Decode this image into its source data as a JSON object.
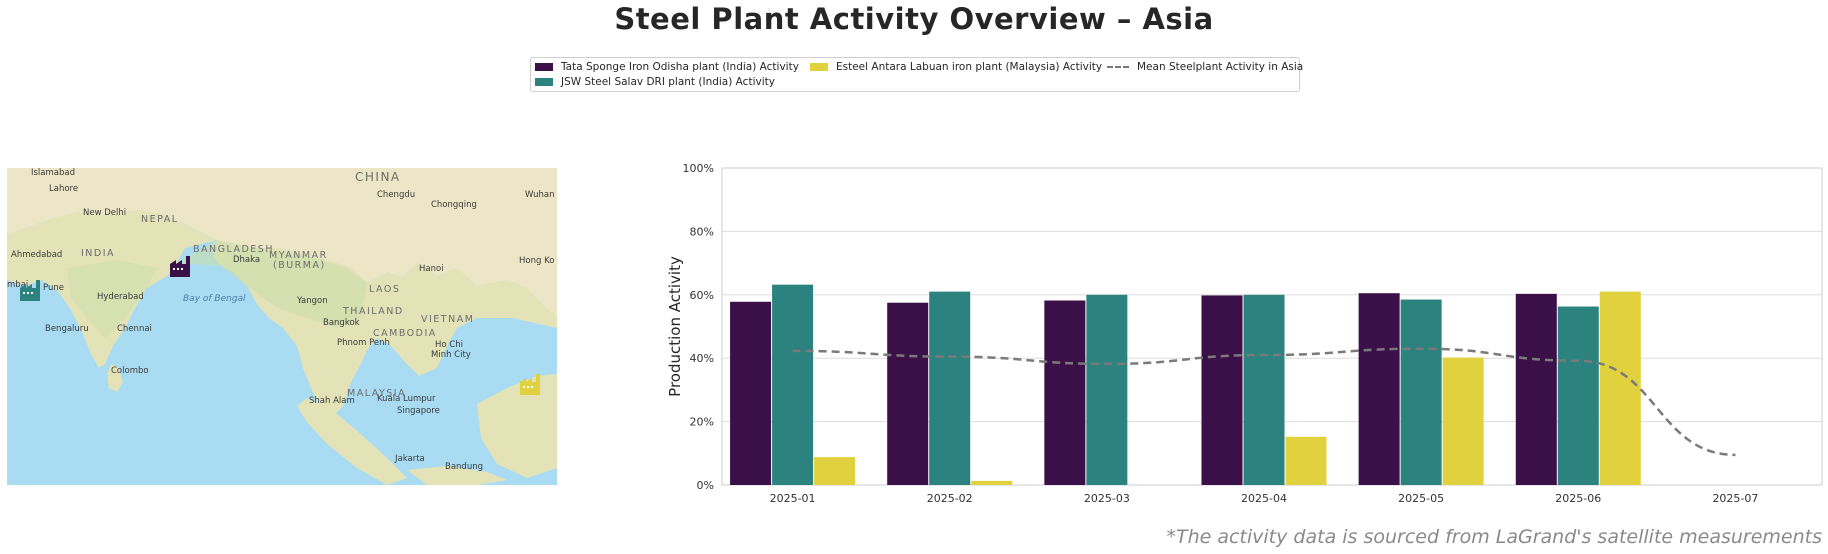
{
  "title": "Steel Plant Activity Overview – Asia",
  "footnote": "*The activity data is sourced from LaGrand's satellite measurements",
  "legend": {
    "items": [
      {
        "label": "Tata Sponge Iron Odisha plant (India) Activity",
        "color": "#3b0f47"
      },
      {
        "label": "JSW Steel Salav DRI plant (India) Activity",
        "color": "#2c827e"
      },
      {
        "label": "Esteel Antara Labuan iron plant (Malaysia) Activity",
        "color": "#e1d13f"
      },
      {
        "label": "Mean Steelplant Activity in Asia",
        "color": "#7a7a7a"
      }
    ]
  },
  "map": {
    "labels": [
      {
        "text": "Islamabad",
        "kind": "city"
      },
      {
        "text": "Lahore",
        "kind": "city"
      },
      {
        "text": "New Delhi",
        "kind": "city"
      },
      {
        "text": "NEPAL",
        "kind": "country"
      },
      {
        "text": "CHINA",
        "kind": "country"
      },
      {
        "text": "Chengdu",
        "kind": "city"
      },
      {
        "text": "Chongqing",
        "kind": "city"
      },
      {
        "text": "Wuhan",
        "kind": "city"
      },
      {
        "text": "Ahmedabad",
        "kind": "city"
      },
      {
        "text": "INDIA",
        "kind": "country"
      },
      {
        "text": "BANGLADESH",
        "kind": "country"
      },
      {
        "text": "Dhaka",
        "kind": "city"
      },
      {
        "text": "MYANMAR",
        "kind": "country"
      },
      {
        "text": "(BURMA)",
        "kind": "country"
      },
      {
        "text": "Hanoi",
        "kind": "city"
      },
      {
        "text": "Hong Ko",
        "kind": "city"
      },
      {
        "text": "mbai",
        "kind": "city"
      },
      {
        "text": "Pune",
        "kind": "city"
      },
      {
        "text": "Hyderabad",
        "kind": "city"
      },
      {
        "text": "Bay of Bengal",
        "kind": "sea"
      },
      {
        "text": "LAOS",
        "kind": "country"
      },
      {
        "text": "Yangon",
        "kind": "city"
      },
      {
        "text": "THAILAND",
        "kind": "country"
      },
      {
        "text": "Bangkok",
        "kind": "city"
      },
      {
        "text": "VIETNAM",
        "kind": "country"
      },
      {
        "text": "Bengaluru",
        "kind": "city"
      },
      {
        "text": "Chennai",
        "kind": "city"
      },
      {
        "text": "CAMBODIA",
        "kind": "country"
      },
      {
        "text": "Phnom Penh",
        "kind": "city"
      },
      {
        "text": "Ho Chi",
        "kind": "city"
      },
      {
        "text": "Minh City",
        "kind": "city"
      },
      {
        "text": "Colombo",
        "kind": "city"
      },
      {
        "text": "MALAYSIA",
        "kind": "country"
      },
      {
        "text": "Shah Alam",
        "kind": "city"
      },
      {
        "text": "Kuala Lumpur",
        "kind": "city"
      },
      {
        "text": "Singapore",
        "kind": "city"
      },
      {
        "text": "Jakarta",
        "kind": "city"
      },
      {
        "text": "Bandung",
        "kind": "city"
      }
    ],
    "markers": [
      {
        "name": "JSW Steel Salav DRI plant (India)",
        "color": "#2c827e",
        "icon": "factory-icon"
      },
      {
        "name": "Tata Sponge Iron Odisha plant (India)",
        "color": "#3b0f47",
        "icon": "factory-icon"
      },
      {
        "name": "Esteel Antara Labuan iron plant (Malaysia)",
        "color": "#e1d13f",
        "icon": "factory-icon"
      }
    ]
  },
  "chart_data": {
    "type": "bar",
    "title": "",
    "xlabel": "",
    "ylabel": "Production Activity",
    "ylim": [
      0,
      100
    ],
    "yticks": [
      "0%",
      "20%",
      "40%",
      "60%",
      "80%",
      "100%"
    ],
    "grid": true,
    "legend_position": "top-center",
    "categories": [
      "2025-01",
      "2025-02",
      "2025-03",
      "2025-04",
      "2025-05",
      "2025-06",
      "2025-07"
    ],
    "series": [
      {
        "name": "Tata Sponge Iron Odisha plant (India) Activity",
        "type": "bar",
        "color": "#3b0f47",
        "values": [
          57.8,
          57.5,
          58.2,
          59.8,
          60.5,
          60.3,
          null
        ]
      },
      {
        "name": "JSW Steel Salav DRI plant (India) Activity",
        "type": "bar",
        "color": "#2c827e",
        "values": [
          63.2,
          61.0,
          60.0,
          60.0,
          58.5,
          56.3,
          null
        ]
      },
      {
        "name": "Esteel Antara Labuan iron plant (Malaysia) Activity",
        "type": "bar",
        "color": "#e1d13f",
        "values": [
          8.8,
          1.3,
          null,
          15.2,
          40.2,
          61.0,
          null
        ]
      },
      {
        "name": "Mean Steelplant Activity in Asia",
        "type": "line",
        "style": "dashed",
        "color": "#7a7a7a",
        "values": [
          42.3,
          40.5,
          38.2,
          41.0,
          43.0,
          39.2,
          9.5
        ]
      }
    ]
  }
}
